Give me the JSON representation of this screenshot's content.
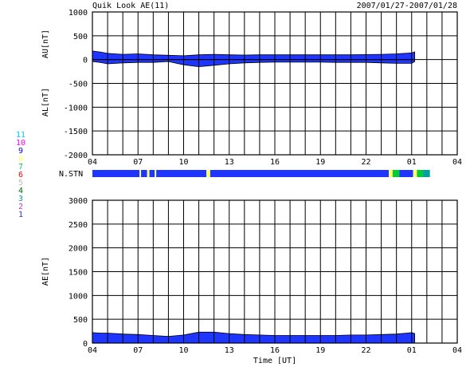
{
  "header": {
    "title": "Quik Look AE(11)",
    "date_range": "2007/01/27-2007/01/28"
  },
  "chart_data": [
    {
      "type": "area",
      "panel": "AU / AL",
      "ylabel_top": "AU[nT]",
      "ylabel_bottom": "AL[nT]",
      "ylim": [
        -2000,
        1000
      ],
      "yticks": [
        "1000",
        "500",
        "0",
        "-500",
        "-1000",
        "-1500",
        "-2000"
      ],
      "xticks": [
        "04",
        "07",
        "10",
        "13",
        "16",
        "19",
        "22",
        "01",
        "04"
      ],
      "xlim_hours": [
        4,
        28
      ],
      "grid": true,
      "series": [
        {
          "name": "AU",
          "x": [
            4.0,
            4.5,
            5.0,
            6.0,
            7.0,
            8.0,
            9.0,
            10.0,
            11.0,
            12.0,
            13.0,
            14.0,
            15.0,
            16.0,
            17.0,
            18.0,
            19.0,
            20.0,
            21.0,
            22.0,
            23.0,
            24.0,
            25.0,
            25.2
          ],
          "values": [
            180,
            160,
            130,
            110,
            120,
            100,
            90,
            80,
            100,
            110,
            100,
            95,
            100,
            100,
            100,
            100,
            100,
            100,
            100,
            105,
            110,
            120,
            140,
            160
          ]
        },
        {
          "name": "AL",
          "x": [
            4.0,
            4.5,
            5.0,
            6.0,
            7.0,
            8.0,
            9.0,
            10.0,
            11.0,
            12.0,
            13.0,
            14.0,
            15.0,
            16.0,
            17.0,
            18.0,
            19.0,
            20.0,
            21.0,
            22.0,
            23.0,
            24.0,
            25.0,
            25.2
          ],
          "values": [
            -40,
            -60,
            -90,
            -70,
            -60,
            -60,
            -40,
            -110,
            -150,
            -120,
            -90,
            -70,
            -60,
            -55,
            -55,
            -55,
            -55,
            -60,
            -60,
            -60,
            -70,
            -80,
            -80,
            -40
          ]
        }
      ]
    },
    {
      "type": "bar",
      "panel": "N.STN",
      "label": "N.STN",
      "legend_counts": [
        "11",
        "10",
        "9",
        "8",
        "7",
        "6",
        "5",
        "4",
        "3",
        "2",
        "1"
      ],
      "legend_colors": [
        "#00c8ff",
        "#ff00ff",
        "#0000ff",
        "#ffff66",
        "#00cc66",
        "#ff0000",
        "#bbbbbb",
        "#006600",
        "#00a0a0",
        "#cc33cc",
        "#3333cc"
      ],
      "segments": [
        {
          "start": 4.0,
          "end": 7.1,
          "stations": 9,
          "color": "#1e36ff"
        },
        {
          "start": 7.1,
          "end": 7.2,
          "stations": 8,
          "color": "#ffff66"
        },
        {
          "start": 7.2,
          "end": 7.6,
          "stations": 9,
          "color": "#1e36ff"
        },
        {
          "start": 7.6,
          "end": 7.75,
          "stations": 8,
          "color": "#ffff66"
        },
        {
          "start": 7.75,
          "end": 8.1,
          "stations": 9,
          "color": "#1e36ff"
        },
        {
          "start": 8.1,
          "end": 8.2,
          "stations": 8,
          "color": "#ffff66"
        },
        {
          "start": 8.2,
          "end": 11.5,
          "stations": 9,
          "color": "#1e36ff"
        },
        {
          "start": 11.5,
          "end": 11.75,
          "stations": 8,
          "color": "#ffff66"
        },
        {
          "start": 11.75,
          "end": 23.5,
          "stations": 9,
          "color": "#1e36ff"
        },
        {
          "start": 23.5,
          "end": 23.75,
          "stations": 8,
          "color": "#ffff66"
        },
        {
          "start": 23.75,
          "end": 24.2,
          "stations": 7,
          "color": "#00cc33"
        },
        {
          "start": 24.2,
          "end": 25.1,
          "stations": 9,
          "color": "#1e36ff"
        },
        {
          "start": 25.1,
          "end": 25.35,
          "stations": 8,
          "color": "#ffff66"
        },
        {
          "start": 25.35,
          "end": 25.75,
          "stations": 7,
          "color": "#00cc33"
        },
        {
          "start": 25.75,
          "end": 26.2,
          "stations": 3,
          "color": "#00a0a0"
        }
      ]
    },
    {
      "type": "area",
      "panel": "AE",
      "ylabel": "AE[nT]",
      "ylim": [
        0,
        3000
      ],
      "yticks": [
        "3000",
        "2500",
        "2000",
        "1500",
        "1000",
        "500",
        "0"
      ],
      "xticks": [
        "04",
        "07",
        "10",
        "13",
        "16",
        "19",
        "22",
        "01",
        "04"
      ],
      "xlim_hours": [
        4,
        28
      ],
      "xlabel": "Time [UT]",
      "grid": true,
      "series": [
        {
          "name": "AE",
          "x": [
            4.0,
            4.5,
            5.0,
            6.0,
            7.0,
            8.0,
            9.0,
            10.0,
            11.0,
            12.0,
            13.0,
            14.0,
            15.0,
            16.0,
            17.0,
            18.0,
            19.0,
            20.0,
            21.0,
            22.0,
            23.0,
            24.0,
            25.0,
            25.2
          ],
          "values": [
            220,
            210,
            210,
            190,
            180,
            160,
            140,
            170,
            230,
            230,
            200,
            180,
            170,
            160,
            160,
            160,
            160,
            160,
            170,
            170,
            180,
            190,
            220,
            200
          ]
        }
      ]
    }
  ]
}
